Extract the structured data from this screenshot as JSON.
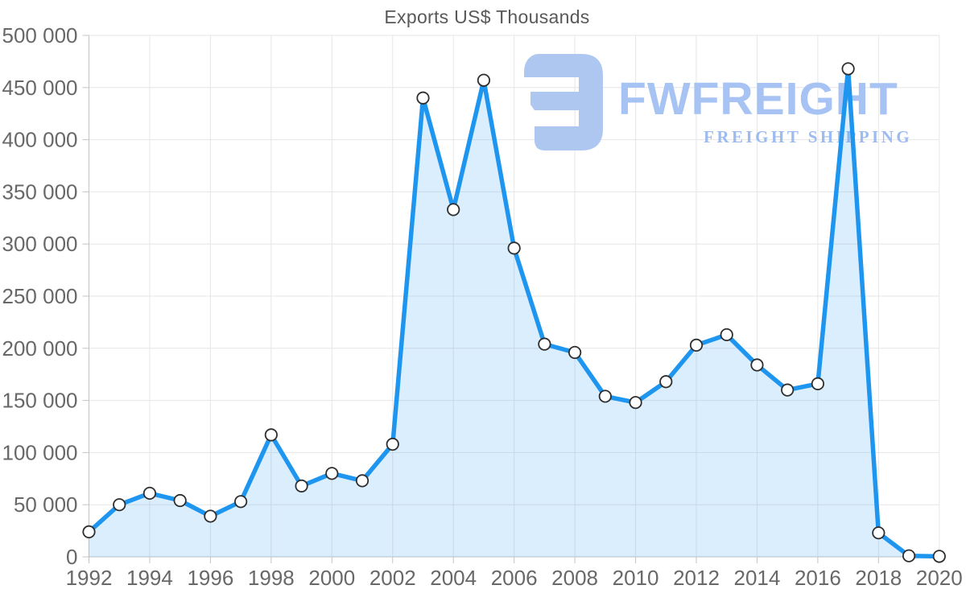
{
  "page": {
    "background": "#ffffff"
  },
  "logo": {
    "name": "FWFREIGHT",
    "tagline": "FREIGHT SHIPPING",
    "icon": "fw-monogram-icon",
    "icon_color": "#aec7f1",
    "name_color": "#a6c3f3",
    "tagline_color": "#9cbbf1"
  },
  "chart_data": {
    "type": "area",
    "title": "Exports US$ Thousands",
    "xlabel": "",
    "ylabel": "",
    "x": [
      1992,
      1993,
      1994,
      1995,
      1996,
      1997,
      1998,
      1999,
      2000,
      2001,
      2002,
      2003,
      2004,
      2005,
      2006,
      2007,
      2008,
      2009,
      2010,
      2011,
      2012,
      2013,
      2014,
      2015,
      2016,
      2017,
      2018,
      2019,
      2020
    ],
    "values": [
      24000,
      50000,
      61000,
      54000,
      39000,
      53000,
      117000,
      68000,
      80000,
      73000,
      108000,
      440000,
      333000,
      457000,
      296000,
      204000,
      196000,
      154000,
      148000,
      168000,
      203000,
      213000,
      184000,
      160000,
      166000,
      468000,
      23000,
      1000,
      500
    ],
    "x_tick_labels": [
      "1992",
      "1994",
      "1996",
      "1998",
      "2000",
      "2002",
      "2004",
      "2006",
      "2008",
      "2010",
      "2012",
      "2014",
      "2016",
      "2018",
      "2020"
    ],
    "x_tick_values": [
      1992,
      1994,
      1996,
      1998,
      2000,
      2002,
      2004,
      2006,
      2008,
      2010,
      2012,
      2014,
      2016,
      2018,
      2020
    ],
    "y_tick_labels": [
      "0",
      "50 000",
      "100 000",
      "150 000",
      "200 000",
      "250 000",
      "300 000",
      "350 000",
      "400 000",
      "450 000",
      "500 000"
    ],
    "y_tick_values": [
      0,
      50000,
      100000,
      150000,
      200000,
      250000,
      300000,
      350000,
      400000,
      450000,
      500000
    ],
    "xlim": [
      1992,
      2020
    ],
    "ylim": [
      0,
      500000
    ],
    "grid": true,
    "legend": false,
    "colors": {
      "line": "#1e96f0",
      "fill": "rgba(33, 150, 243, 0.16)",
      "marker_fill": "#ffffff",
      "marker_stroke": "#2e2e2e",
      "grid": "#e6e6e6",
      "axis": "#c3c3c3",
      "tick_label": "#686868",
      "title": "#595959"
    }
  }
}
